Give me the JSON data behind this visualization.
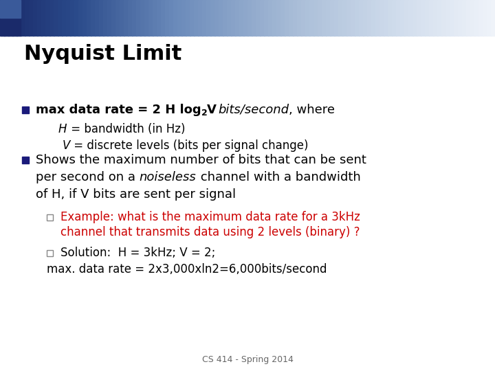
{
  "title": "Nyquist Limit",
  "background_color": "#ffffff",
  "title_color": "#000000",
  "title_fontsize": 22,
  "bullet_marker_color": "#1a1a7a",
  "bullet_marker_size": 0.013,
  "sub_marker_size": 0.011,
  "b1_line1_bold": "max data rate = 2 H log",
  "b1_sub2": "2",
  "b1_V": "V",
  "b1_italic": "bits/second",
  "b1_end": ", where",
  "b1_indent1_italic": "H",
  "b1_indent1_rest": " = bandwidth (in Hz)",
  "b1_indent2_italic": "V",
  "b1_indent2_rest": " = discrete levels (bits per signal change)",
  "b2_line1": "Shows the maximum number of bits that can be sent",
  "b2_line2a": "per second on a ",
  "b2_line2b": "noiseless",
  "b2_line2c": " channel with a bandwidth",
  "b2_line3": "of H, if V bits are sent per signal",
  "sub1_line1": "Example: what is the maximum data rate for a 3kHz",
  "sub1_line2": "channel that transmits data using 2 levels (binary) ?",
  "sub1_color": "#cc0000",
  "sub2_line1": "Solution:  H = 3kHz; V = 2;",
  "sub2_line2": "max. data rate = 2x3,000xln2=6,000bits/second",
  "sub2_color": "#000000",
  "footer": "CS 414 - Spring 2014",
  "footer_color": "#666666",
  "footer_fontsize": 9,
  "main_fontsize": 13,
  "sub_fontsize": 12
}
